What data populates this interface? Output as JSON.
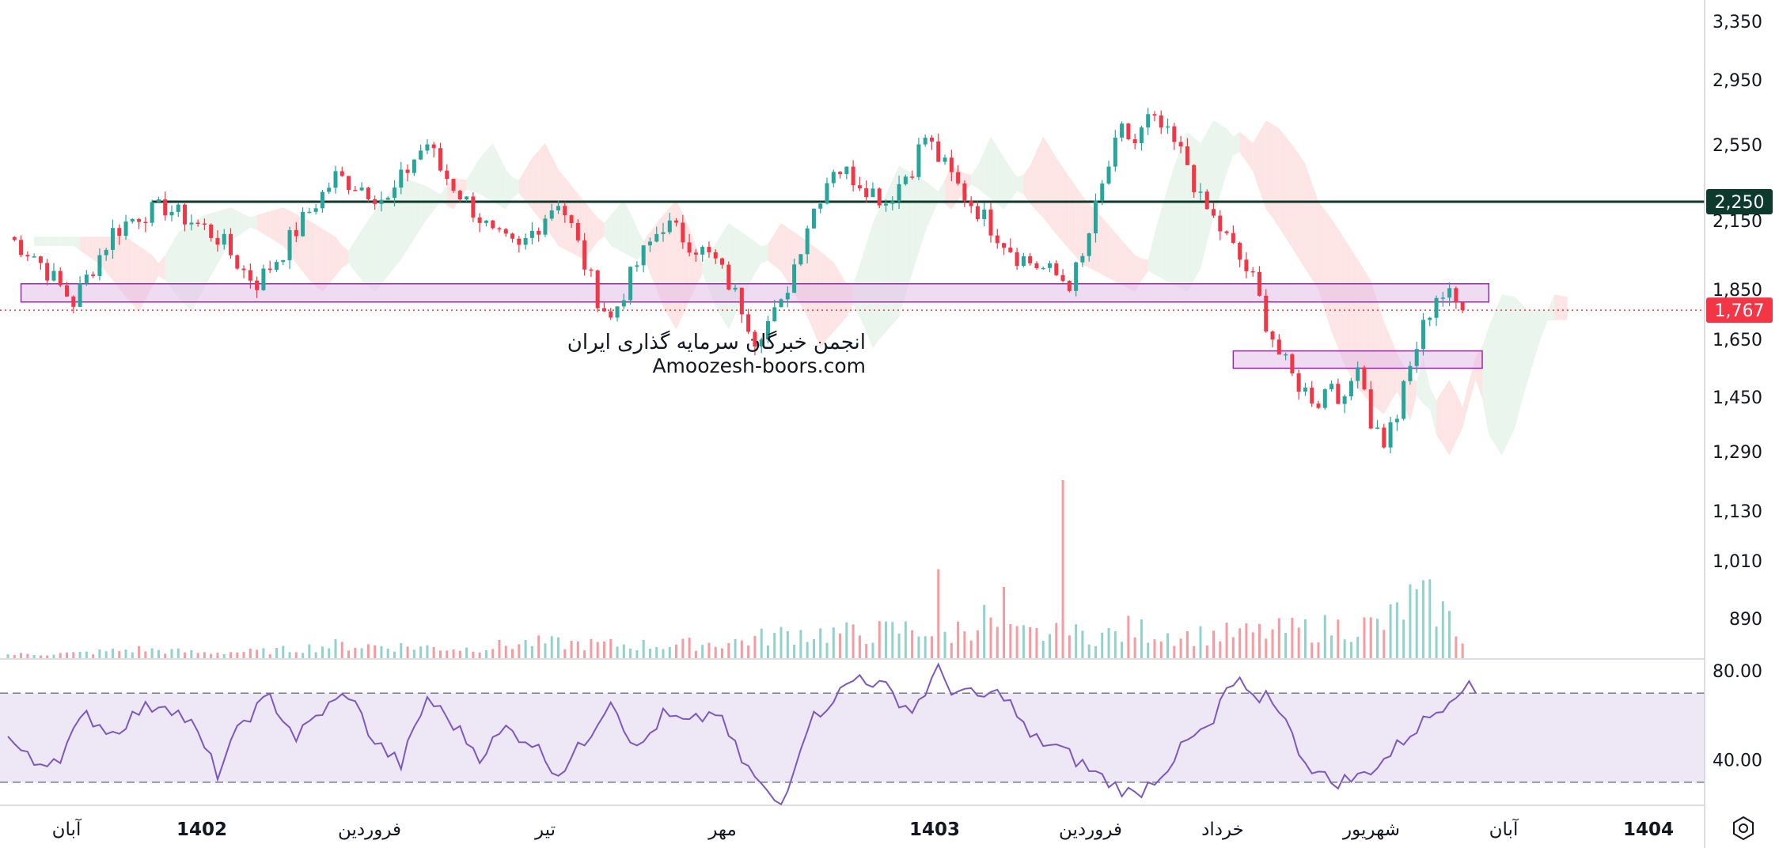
{
  "watermark": {
    "line1": "انجمن خبرگان سرمایه گذاری ایران",
    "line2": "Amoozesh-boors.com"
  },
  "chart_data": [
    {
      "type": "candlestick",
      "name": "price",
      "yticks": [
        3350,
        2950,
        2550,
        2150,
        1850,
        1650,
        1450,
        1290,
        1130,
        1010,
        890
      ],
      "ylim": [
        820,
        3400
      ],
      "grid": false,
      "horizontal_lines": [
        {
          "value": 2250,
          "label": "2,250",
          "color": "#0c3b2e",
          "style": "solid"
        },
        {
          "value": 1767,
          "label": "1,767",
          "color": "#f23645",
          "style": "dotted"
        }
      ],
      "zones": [
        {
          "low": 1800,
          "high": 1875,
          "from_index": 2,
          "to_index": 226,
          "color": "#e1bee7"
        },
        {
          "low": 1550,
          "high": 1610,
          "from_index": 187,
          "to_index": 225,
          "color": "#e1bee7"
        }
      ],
      "close_series": [
        [
          0,
          2080
        ],
        [
          4,
          2000
        ],
        [
          8,
          1860
        ],
        [
          10,
          1800
        ],
        [
          12,
          1900
        ],
        [
          16,
          2100
        ],
        [
          20,
          2180
        ],
        [
          24,
          2220
        ],
        [
          28,
          2150
        ],
        [
          32,
          2080
        ],
        [
          36,
          1930
        ],
        [
          38,
          1880
        ],
        [
          42,
          2020
        ],
        [
          46,
          2200
        ],
        [
          50,
          2380
        ],
        [
          54,
          2330
        ],
        [
          58,
          2250
        ],
        [
          62,
          2480
        ],
        [
          64,
          2560
        ],
        [
          66,
          2420
        ],
        [
          70,
          2250
        ],
        [
          74,
          2080
        ],
        [
          78,
          2020
        ],
        [
          82,
          2180
        ],
        [
          84,
          2260
        ],
        [
          86,
          2120
        ],
        [
          88,
          1960
        ],
        [
          90,
          1820
        ],
        [
          92,
          1730
        ],
        [
          96,
          1960
        ],
        [
          100,
          2140
        ],
        [
          104,
          2060
        ],
        [
          108,
          1970
        ],
        [
          112,
          1780
        ],
        [
          114,
          1660
        ],
        [
          118,
          1780
        ],
        [
          122,
          2140
        ],
        [
          126,
          2440
        ],
        [
          130,
          2360
        ],
        [
          134,
          2250
        ],
        [
          138,
          2440
        ],
        [
          140,
          2600
        ],
        [
          142,
          2480
        ],
        [
          146,
          2280
        ],
        [
          150,
          2130
        ],
        [
          154,
          2000
        ],
        [
          158,
          1940
        ],
        [
          162,
          1880
        ],
        [
          164,
          1980
        ],
        [
          168,
          2440
        ],
        [
          170,
          2630
        ],
        [
          172,
          2560
        ],
        [
          174,
          2700
        ],
        [
          176,
          2650
        ],
        [
          180,
          2450
        ],
        [
          182,
          2250
        ],
        [
          186,
          2070
        ],
        [
          190,
          1890
        ],
        [
          192,
          1720
        ],
        [
          194,
          1600
        ],
        [
          196,
          1520
        ],
        [
          198,
          1470
        ],
        [
          200,
          1440
        ],
        [
          202,
          1510
        ],
        [
          204,
          1420
        ],
        [
          206,
          1590
        ],
        [
          208,
          1380
        ],
        [
          210,
          1320
        ],
        [
          212,
          1400
        ],
        [
          214,
          1550
        ],
        [
          216,
          1700
        ],
        [
          218,
          1830
        ],
        [
          220,
          1820
        ],
        [
          222,
          1767
        ]
      ],
      "volume": {
        "scale_max": 5000000,
        "values": [
          [
            0,
            60
          ],
          [
            10,
            80
          ],
          [
            20,
            150
          ],
          [
            30,
            90
          ],
          [
            40,
            120
          ],
          [
            50,
            220
          ],
          [
            60,
            200
          ],
          [
            70,
            160
          ],
          [
            80,
            260
          ],
          [
            90,
            230
          ],
          [
            100,
            220
          ],
          [
            110,
            260
          ],
          [
            120,
            430
          ],
          [
            130,
            410
          ],
          [
            140,
            510
          ],
          [
            142,
            1500
          ],
          [
            144,
            450
          ],
          [
            150,
            700
          ],
          [
            152,
            1200
          ],
          [
            160,
            420
          ],
          [
            161,
            3000
          ],
          [
            170,
            500
          ],
          [
            180,
            380
          ],
          [
            190,
            420
          ],
          [
            200,
            500
          ],
          [
            210,
            560
          ],
          [
            214,
            950
          ],
          [
            218,
            900
          ],
          [
            222,
            380
          ]
        ]
      }
    },
    {
      "type": "line",
      "name": "RSI",
      "yticks": [
        80.0,
        40.0
      ],
      "tick_labels": [
        "80.00",
        "40.00"
      ],
      "bands": [
        30,
        70
      ],
      "ylim": [
        20,
        85
      ],
      "x_max": 224,
      "values": [
        [
          0,
          50
        ],
        [
          4,
          38
        ],
        [
          8,
          42
        ],
        [
          10,
          52
        ],
        [
          12,
          60
        ],
        [
          16,
          52
        ],
        [
          20,
          62
        ],
        [
          24,
          66
        ],
        [
          28,
          56
        ],
        [
          32,
          34
        ],
        [
          36,
          58
        ],
        [
          40,
          68
        ],
        [
          44,
          50
        ],
        [
          48,
          62
        ],
        [
          52,
          70
        ],
        [
          56,
          48
        ],
        [
          60,
          38
        ],
        [
          64,
          68
        ],
        [
          68,
          56
        ],
        [
          72,
          42
        ],
        [
          76,
          54
        ],
        [
          80,
          48
        ],
        [
          84,
          34
        ],
        [
          88,
          48
        ],
        [
          92,
          68
        ],
        [
          96,
          44
        ],
        [
          100,
          60
        ],
        [
          104,
          56
        ],
        [
          108,
          62
        ],
        [
          112,
          40
        ],
        [
          116,
          24
        ],
        [
          118,
          20
        ],
        [
          122,
          56
        ],
        [
          126,
          68
        ],
        [
          130,
          78
        ],
        [
          134,
          72
        ],
        [
          138,
          62
        ],
        [
          142,
          80
        ],
        [
          144,
          72
        ],
        [
          148,
          68
        ],
        [
          152,
          70
        ],
        [
          156,
          50
        ],
        [
          160,
          46
        ],
        [
          164,
          38
        ],
        [
          168,
          30
        ],
        [
          172,
          24
        ],
        [
          176,
          34
        ],
        [
          180,
          48
        ],
        [
          184,
          56
        ],
        [
          186,
          72
        ],
        [
          188,
          74
        ],
        [
          190,
          66
        ],
        [
          192,
          70
        ],
        [
          194,
          64
        ],
        [
          196,
          50
        ],
        [
          198,
          40
        ],
        [
          200,
          34
        ],
        [
          202,
          30
        ],
        [
          206,
          32
        ],
        [
          210,
          40
        ],
        [
          214,
          52
        ],
        [
          218,
          62
        ],
        [
          222,
          74
        ],
        [
          224,
          70
        ]
      ]
    }
  ],
  "time_axis": [
    {
      "label": "آبان",
      "bold": false
    },
    {
      "label": "1402",
      "bold": true
    },
    {
      "label": "فروردین",
      "bold": false
    },
    {
      "label": "تیر",
      "bold": false
    },
    {
      "label": "مهر",
      "bold": false
    },
    {
      "label": "1403",
      "bold": true
    },
    {
      "label": "فروردین",
      "bold": false
    },
    {
      "label": "خرداد",
      "bold": false
    },
    {
      "label": "شهریور",
      "bold": false
    },
    {
      "label": "آبان",
      "bold": false
    },
    {
      "label": "1404",
      "bold": true
    }
  ],
  "colors": {
    "up": "#26a69a",
    "down": "#f23645",
    "rsi_line": "#7e57c2",
    "rsi_band": "#ede7f6",
    "zone_fill": "#e1bee7",
    "zone_border": "#9c27b0",
    "cloud_bear": "#fde0e0",
    "cloud_bull": "#e6f4ea",
    "support_line": "#0c3b2e",
    "current_price": "#f23645"
  },
  "icons": {
    "settings": "settings-gear-icon"
  }
}
